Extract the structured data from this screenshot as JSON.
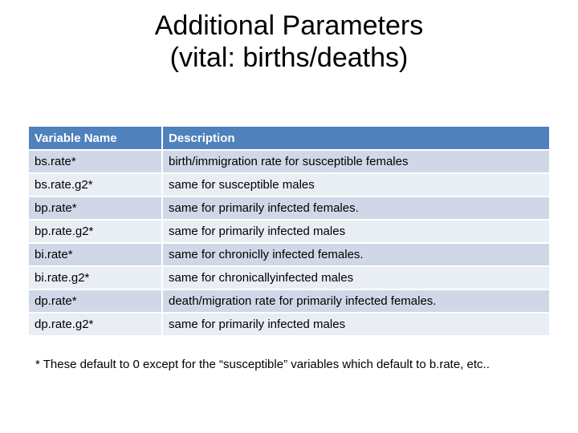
{
  "title": {
    "line1": "Additional Parameters",
    "line2": "(vital: births/deaths)"
  },
  "table": {
    "headers": [
      "Variable Name",
      "Description"
    ],
    "rows": [
      {
        "variable": "bs.rate*",
        "description": "birth/immigration rate for susceptible females"
      },
      {
        "variable": "bs.rate.g2*",
        "description": "same for susceptible males"
      },
      {
        "variable": "bp.rate*",
        "description": "same for primarily infected females."
      },
      {
        "variable": "bp.rate.g2*",
        "description": "same for primarily infected males"
      },
      {
        "variable": "bi.rate*",
        "description": "same for chroniclly infected females."
      },
      {
        "variable": "bi.rate.g2*",
        "description": "same for chronicallyinfected males"
      },
      {
        "variable": "dp.rate*",
        "description": "death/migration rate for primarily infected females."
      },
      {
        "variable": "dp.rate.g2*",
        "description": "same for primarily infected males"
      }
    ]
  },
  "footnote": "* These default to 0 except for the “susceptible” variables which default to b.rate, etc..",
  "colors": {
    "header_bg": "#4f81bd",
    "row_odd_bg": "#d0d8e8",
    "row_even_bg": "#e9edf4"
  }
}
